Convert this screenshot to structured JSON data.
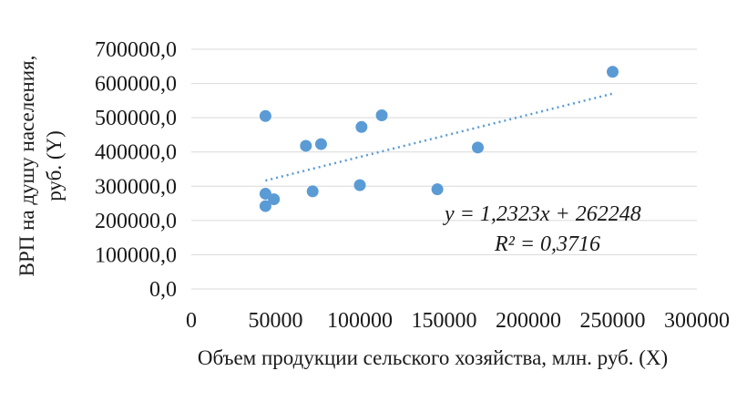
{
  "chart_data": {
    "type": "scatter",
    "xlabel": "Объем продукции сельского хозяйства, млн. руб. (X)",
    "ylabel_lines": [
      "ВРП на душу населения,",
      "руб. (Y)"
    ],
    "xlim": [
      0,
      300000
    ],
    "ylim": [
      0,
      700000
    ],
    "x_ticks": [
      0,
      50000,
      100000,
      150000,
      200000,
      250000,
      300000
    ],
    "x_tick_labels": [
      "0",
      "50000",
      "100000",
      "150000",
      "200000",
      "250000",
      "300000"
    ],
    "y_ticks": [
      0,
      100000,
      200000,
      300000,
      400000,
      500000,
      600000,
      700000
    ],
    "y_tick_labels": [
      "0,0",
      "100000,0",
      "200000,0",
      "300000,0",
      "400000,0",
      "500000,0",
      "600000,0",
      "700000,0"
    ],
    "grid": true,
    "series": [
      {
        "color": "#5b9bd5",
        "points": [
          {
            "x": 44000,
            "y": 505000
          },
          {
            "x": 44000,
            "y": 278000
          },
          {
            "x": 44000,
            "y": 242000
          },
          {
            "x": 49000,
            "y": 262000
          },
          {
            "x": 68000,
            "y": 418000
          },
          {
            "x": 72000,
            "y": 285000
          },
          {
            "x": 77000,
            "y": 423000
          },
          {
            "x": 100000,
            "y": 303000
          },
          {
            "x": 101000,
            "y": 473000
          },
          {
            "x": 113000,
            "y": 507000
          },
          {
            "x": 146000,
            "y": 291000
          },
          {
            "x": 170000,
            "y": 413000
          },
          {
            "x": 250000,
            "y": 634000
          }
        ]
      }
    ],
    "trendline": {
      "type": "linear",
      "slope": 1.2323,
      "intercept": 262248,
      "x_range": [
        44000,
        250000
      ],
      "color": "#5b9bd5",
      "equation_label": "y = 1,2323x + 262248",
      "r2_label": "R² = 0,3716"
    }
  }
}
